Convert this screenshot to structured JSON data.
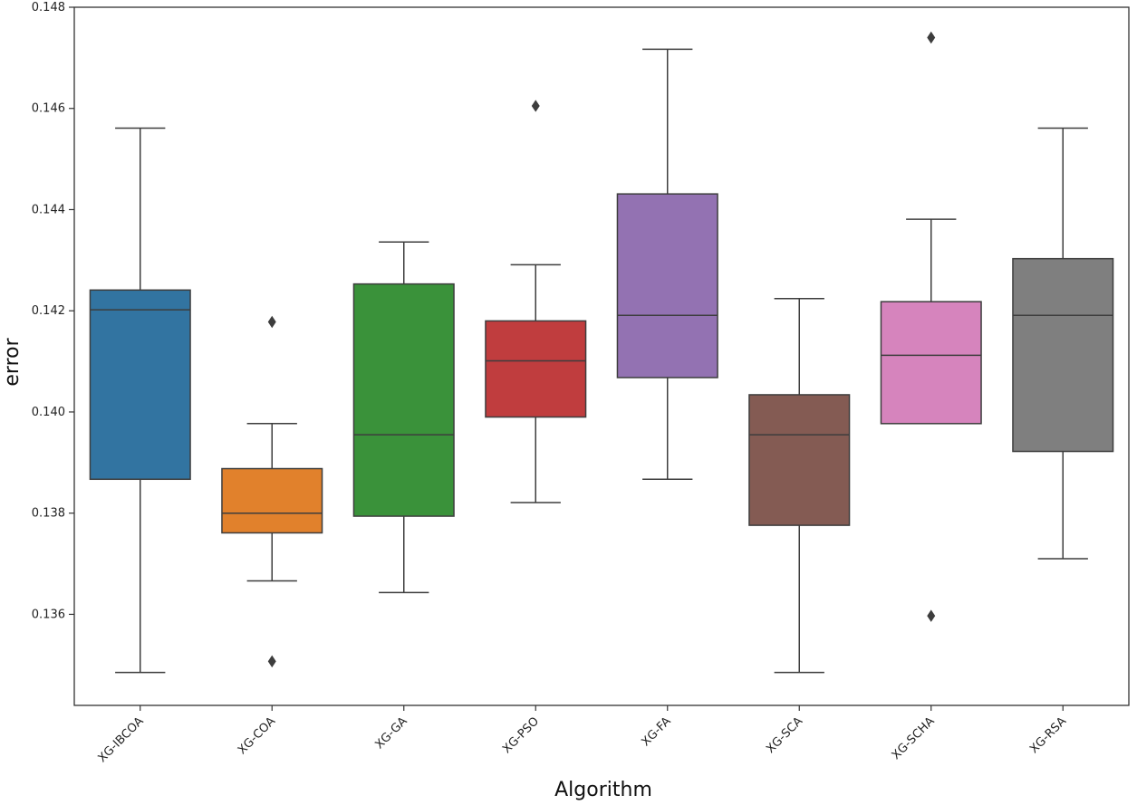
{
  "chart_data": {
    "type": "box",
    "title": "",
    "xlabel": "Algorithm",
    "ylabel": "error",
    "ylim": [
      0.1342,
      0.148
    ],
    "yticks": [
      {
        "value": 0.136,
        "label": "0.136"
      },
      {
        "value": 0.138,
        "label": "0.138"
      },
      {
        "value": 0.14,
        "label": "0.140"
      },
      {
        "value": 0.142,
        "label": "0.142"
      },
      {
        "value": 0.144,
        "label": "0.144"
      },
      {
        "value": 0.146,
        "label": "0.146"
      },
      {
        "value": 0.148,
        "label": "0.148"
      }
    ],
    "grid": false,
    "boxes": [
      {
        "name": "XG-IBCOA",
        "color": "#3274a1",
        "whisker_low": 0.13485,
        "q1": 0.13867,
        "median": 0.14202,
        "q3": 0.14241,
        "whisker_high": 0.14561,
        "outliers": []
      },
      {
        "name": "XG-COA",
        "color": "#e1812c",
        "whisker_low": 0.13666,
        "q1": 0.13761,
        "median": 0.138,
        "q3": 0.13888,
        "whisker_high": 0.13977,
        "outliers": [
          0.14178,
          0.13507
        ]
      },
      {
        "name": "XG-GA",
        "color": "#3a923a",
        "whisker_low": 0.13643,
        "q1": 0.13794,
        "median": 0.13955,
        "q3": 0.14253,
        "whisker_high": 0.14336,
        "outliers": []
      },
      {
        "name": "XG-PSO",
        "color": "#c03d3e",
        "whisker_low": 0.13821,
        "q1": 0.1399,
        "median": 0.14101,
        "q3": 0.1418,
        "whisker_high": 0.14291,
        "outliers": [
          0.14605
        ]
      },
      {
        "name": "XG-FA",
        "color": "#9372b2",
        "whisker_low": 0.13867,
        "q1": 0.14068,
        "median": 0.14191,
        "q3": 0.14431,
        "whisker_high": 0.14717,
        "outliers": []
      },
      {
        "name": "XG-SCA",
        "color": "#845b53",
        "whisker_low": 0.13485,
        "q1": 0.13776,
        "median": 0.13955,
        "q3": 0.14034,
        "whisker_high": 0.14224,
        "outliers": []
      },
      {
        "name": "XG-SCHA",
        "color": "#d684bd",
        "whisker_low": 0.13977,
        "q1": 0.13977,
        "median": 0.14112,
        "q3": 0.14218,
        "whisker_high": 0.14381,
        "outliers": [
          0.1474,
          0.13597
        ]
      },
      {
        "name": "XG-RSA",
        "color": "#7f7f7f",
        "whisker_low": 0.1371,
        "q1": 0.13922,
        "median": 0.14191,
        "q3": 0.14303,
        "whisker_high": 0.14561,
        "outliers": []
      }
    ]
  }
}
